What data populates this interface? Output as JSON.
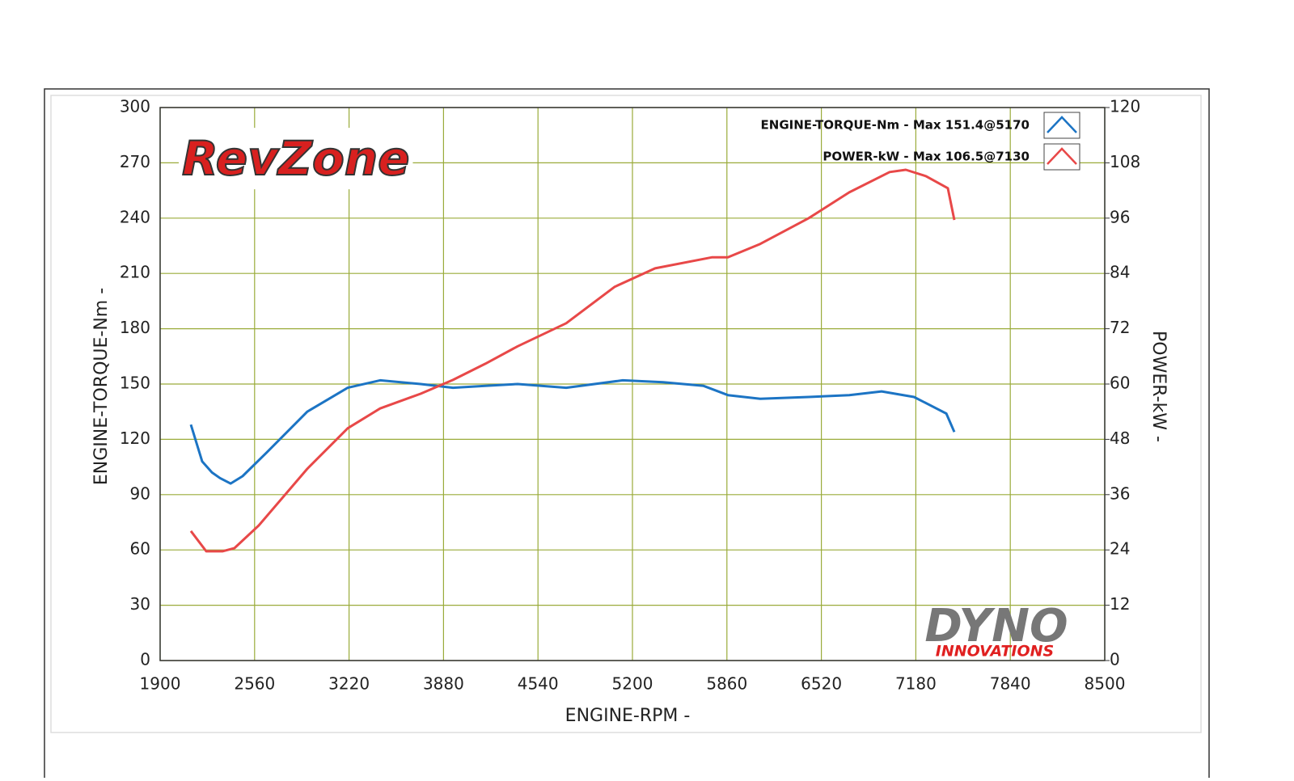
{
  "chart_data": {
    "type": "line",
    "xlabel": "ENGINE-RPM -",
    "ylabel": "ENGINE-TORQUE-Nm -",
    "y2label": "POWER-kW -",
    "xlim": [
      1900,
      8500
    ],
    "xticks": [
      1900,
      2560,
      3220,
      3880,
      4540,
      5200,
      5860,
      6520,
      7180,
      7840,
      8500
    ],
    "ylim": [
      0,
      300
    ],
    "yticks": [
      0,
      30,
      60,
      90,
      120,
      150,
      180,
      210,
      240,
      270,
      300
    ],
    "y2lim": [
      0,
      120
    ],
    "y2ticks": [
      0,
      12,
      24,
      36,
      48,
      60,
      72,
      84,
      96,
      108,
      120
    ],
    "grid": true,
    "grid_color": "#9aab3a",
    "annotations": [
      "RevZone",
      "DYNO",
      "INNOVATIONS"
    ],
    "series": [
      {
        "name": "ENGINE-TORQUE-Nm -  Max 151.4@5170",
        "color": "#1c74c4",
        "axis": "y",
        "x": [
          2115,
          2194,
          2262,
          2318,
          2392,
          2476,
          2646,
          2928,
          3211,
          3437,
          3720,
          3946,
          4172,
          4398,
          4737,
          5132,
          5415,
          5697,
          5867,
          6093,
          6432,
          6715,
          6941,
          7167,
          7393,
          7449
        ],
        "values": [
          128,
          108,
          102,
          99,
          96,
          100,
          113,
          135,
          148,
          152,
          150,
          148,
          149,
          150,
          148,
          152,
          151,
          149,
          144,
          142,
          143,
          144,
          146,
          143,
          134,
          124
        ]
      },
      {
        "name": "POWER-kW -  Max 106.5@7130",
        "color": "#e84848",
        "axis": "y2",
        "x": [
          2115,
          2222,
          2335,
          2420,
          2589,
          2928,
          3211,
          3437,
          3720,
          3946,
          4172,
          4398,
          4737,
          5076,
          5358,
          5754,
          5867,
          6093,
          6432,
          6715,
          6997,
          7110,
          7251,
          7404,
          7449
        ],
        "values": [
          28.1,
          23.7,
          23.7,
          24.4,
          29.3,
          41.6,
          50.4,
          54.7,
          57.9,
          60.9,
          64.4,
          68.2,
          73.2,
          81.1,
          85.1,
          87.5,
          87.5,
          90.4,
          96.0,
          101.6,
          106.0,
          106.5,
          105.1,
          102.5,
          95.6
        ]
      }
    ]
  }
}
